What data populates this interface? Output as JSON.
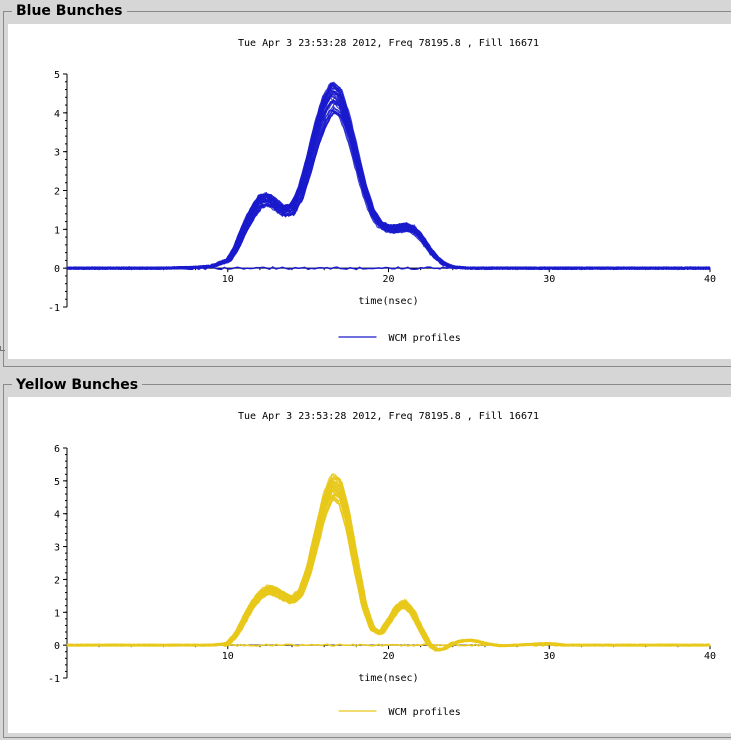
{
  "panels": [
    {
      "title": "Blue Bunches",
      "color": "#1a1acc"
    },
    {
      "title": "Yellow Bunches",
      "color": "#e8c81a"
    }
  ],
  "chart_data": [
    {
      "type": "line",
      "title": "Tue Apr  3 23:53:28 2012, Freq 78195.8 , Fill 16671",
      "xlabel": "time(nsec)",
      "ylabel": "",
      "xlim": [
        0,
        40
      ],
      "ylim": [
        -1,
        5
      ],
      "xticks": [
        10,
        20,
        30,
        40
      ],
      "yticks": [
        -1,
        0,
        1,
        2,
        3,
        4,
        5
      ],
      "legend": {
        "label": "WCM profiles",
        "placement": "bottom-center"
      },
      "grid": false,
      "series": [
        {
          "name": "WCM profiles",
          "color": "#1a1acc",
          "x": [
            0,
            2,
            4,
            6,
            8,
            9,
            10,
            10.5,
            11,
            11.5,
            12,
            12.5,
            13,
            13.5,
            14,
            14.5,
            15,
            15.5,
            16,
            16.5,
            17,
            17.5,
            18,
            18.5,
            19,
            19.5,
            20,
            20.5,
            21,
            21.5,
            22,
            22.5,
            23,
            23.5,
            24,
            25,
            27,
            30,
            35,
            40
          ],
          "values": [
            0,
            0,
            0,
            0,
            0.02,
            0.05,
            0.2,
            0.5,
            1.0,
            1.4,
            1.7,
            1.75,
            1.6,
            1.45,
            1.5,
            1.9,
            2.6,
            3.4,
            4.0,
            4.35,
            4.2,
            3.6,
            2.8,
            2.0,
            1.4,
            1.1,
            1.0,
            1.0,
            1.05,
            1.0,
            0.8,
            0.5,
            0.25,
            0.1,
            0.03,
            0,
            0,
            0,
            0,
            0
          ],
          "spread": 0.35
        }
      ]
    },
    {
      "type": "line",
      "title": "Tue Apr  3 23:53:28 2012, Freq 78195.8 , Fill 16671",
      "xlabel": "time(nsec)",
      "ylabel": "",
      "xlim": [
        0,
        40
      ],
      "ylim": [
        -1,
        6
      ],
      "xticks": [
        10,
        20,
        30,
        40
      ],
      "yticks": [
        -1,
        0,
        1,
        2,
        3,
        4,
        5,
        6
      ],
      "legend": {
        "label": "WCM profiles",
        "placement": "bottom-center"
      },
      "grid": false,
      "series": [
        {
          "name": "WCM profiles",
          "color": "#e8c81a",
          "x": [
            0,
            2,
            4,
            6,
            8,
            9,
            10,
            10.5,
            11,
            11.5,
            12,
            12.5,
            13,
            13.5,
            14,
            14.5,
            15,
            15.5,
            16,
            16.5,
            17,
            17.5,
            18,
            18.5,
            19,
            19.5,
            20,
            20.5,
            21,
            21.5,
            22,
            22.5,
            23,
            23.5,
            24,
            24.5,
            25,
            25.5,
            26,
            27,
            28,
            29,
            30,
            31,
            32,
            35,
            40
          ],
          "values": [
            0,
            0,
            0,
            0,
            0,
            0,
            0.05,
            0.3,
            0.75,
            1.2,
            1.5,
            1.65,
            1.6,
            1.45,
            1.35,
            1.55,
            2.2,
            3.2,
            4.2,
            4.75,
            4.6,
            3.7,
            2.4,
            1.2,
            0.5,
            0.35,
            0.7,
            1.1,
            1.25,
            1.0,
            0.5,
            0.05,
            -0.15,
            -0.1,
            0.05,
            0.12,
            0.15,
            0.12,
            0.05,
            -0.02,
            0,
            0.03,
            0.05,
            0,
            0,
            0,
            0
          ],
          "spread": 0.35
        }
      ]
    }
  ]
}
